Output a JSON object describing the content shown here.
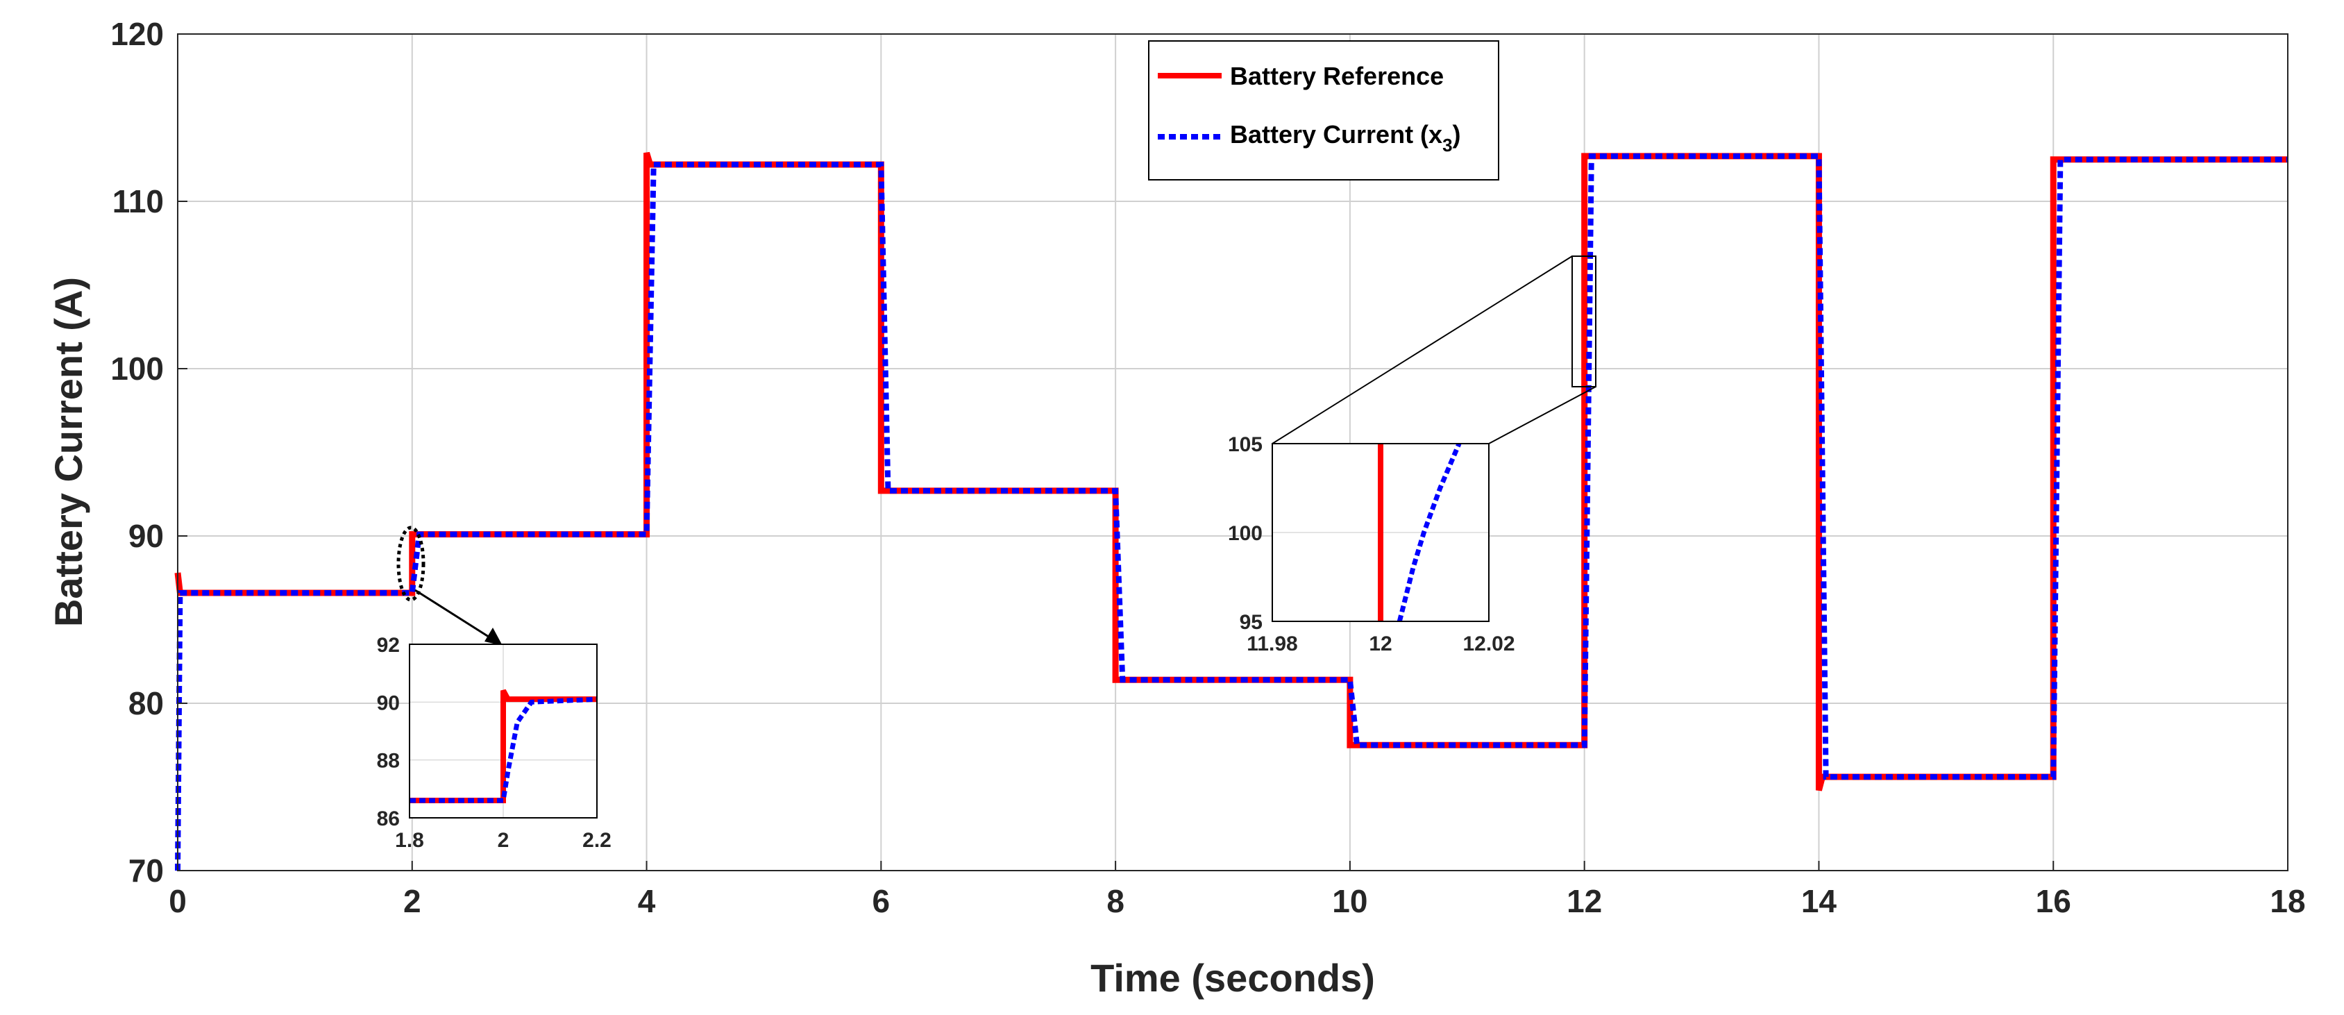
{
  "chart_data": {
    "type": "line",
    "xlabel": "Time (seconds)",
    "ylabel": "Battery Current (A)",
    "xlim": [
      0,
      18
    ],
    "ylim": [
      70,
      120
    ],
    "xticks": [
      0,
      2,
      4,
      6,
      8,
      10,
      12,
      14,
      16,
      18
    ],
    "yticks": [
      70,
      80,
      90,
      100,
      110,
      120
    ],
    "grid": true,
    "legend_position": "top-center",
    "legend": {
      "reference_label": "Battery Reference",
      "current_label_main": "Battery Current (x",
      "current_label_sub": "3",
      "current_label_close": ")"
    },
    "series": [
      {
        "name": "Battery Reference",
        "color": "#ff0000",
        "style": "solid",
        "points": [
          [
            0,
            87.8
          ],
          [
            0.02,
            86.6
          ],
          [
            2,
            86.6
          ],
          [
            2,
            90.1
          ],
          [
            4,
            90.1
          ],
          [
            4,
            112.9
          ],
          [
            4.03,
            112.2
          ],
          [
            6,
            112.2
          ],
          [
            6,
            92.7
          ],
          [
            8,
            92.7
          ],
          [
            8,
            81.4
          ],
          [
            10,
            81.4
          ],
          [
            10,
            77.5
          ],
          [
            12,
            77.5
          ],
          [
            12,
            112.7
          ],
          [
            14,
            112.7
          ],
          [
            14,
            74.8
          ],
          [
            14.03,
            75.6
          ],
          [
            16,
            75.6
          ],
          [
            16,
            112.5
          ],
          [
            18,
            112.5
          ]
        ]
      },
      {
        "name": "Battery Current (x3)",
        "color": "#0000ff",
        "style": "dotted",
        "points": [
          [
            0,
            70
          ],
          [
            0.02,
            86.6
          ],
          [
            2,
            86.6
          ],
          [
            2.06,
            90.1
          ],
          [
            4,
            90.1
          ],
          [
            4.06,
            112.2
          ],
          [
            6,
            112.2
          ],
          [
            6.06,
            92.7
          ],
          [
            8,
            92.7
          ],
          [
            8.06,
            81.4
          ],
          [
            10,
            81.4
          ],
          [
            10.06,
            77.5
          ],
          [
            12,
            77.5
          ],
          [
            12.06,
            112.7
          ],
          [
            14,
            112.7
          ],
          [
            14.06,
            75.6
          ],
          [
            16,
            75.6
          ],
          [
            16.06,
            112.5
          ],
          [
            18,
            112.5
          ]
        ]
      }
    ],
    "insets": [
      {
        "xlim": [
          1.8,
          2.2
        ],
        "ylim": [
          86,
          92
        ],
        "xticks": [
          "1.8",
          "2",
          "2.2"
        ],
        "yticks": [
          "86",
          "88",
          "90",
          "92"
        ],
        "series": [
          {
            "name": "Battery Reference",
            "points": [
              [
                1.8,
                86.6
              ],
              [
                2,
                86.6
              ],
              [
                2,
                90.4
              ],
              [
                2.01,
                90.1
              ],
              [
                2.2,
                90.1
              ]
            ]
          },
          {
            "name": "Battery Current (x3)",
            "points": [
              [
                1.8,
                86.6
              ],
              [
                2,
                86.6
              ],
              [
                2.01,
                87.6
              ],
              [
                2.03,
                89.3
              ],
              [
                2.06,
                90.0
              ],
              [
                2.2,
                90.1
              ]
            ]
          }
        ]
      },
      {
        "xlim": [
          11.98,
          12.02
        ],
        "ylim": [
          95,
          105
        ],
        "xticks": [
          "11.98",
          "12",
          "12.02"
        ],
        "yticks": [
          "95",
          "100",
          "105"
        ],
        "series": [
          {
            "name": "Battery Reference",
            "points": [
              [
                12,
                95
              ],
              [
                12,
                105
              ]
            ]
          },
          {
            "name": "Battery Current (x3)",
            "points": [
              [
                12.0035,
                95
              ],
              [
                12.006,
                98
              ],
              [
                12.008,
                100
              ],
              [
                12.011,
                102.5
              ],
              [
                12.0145,
                105
              ]
            ]
          }
        ]
      }
    ]
  }
}
